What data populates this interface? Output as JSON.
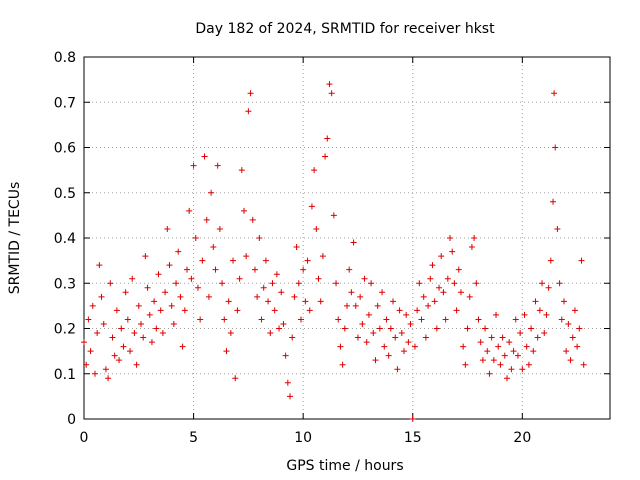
{
  "chart_data": {
    "type": "scatter",
    "title": "Day 182 of 2024, SRMTID for receiver hkst",
    "xlabel": "GPS time / hours",
    "ylabel": "SRMTID / TECUs",
    "xlim": [
      0,
      24
    ],
    "ylim": [
      0,
      0.8
    ],
    "x_ticks": [
      0,
      5,
      10,
      15,
      20
    ],
    "x_tick_labels": [
      "0",
      "5",
      "10",
      "15",
      "20"
    ],
    "y_ticks": [
      0,
      0.1,
      0.2,
      0.3,
      0.4,
      0.5,
      0.6,
      0.7,
      0.8
    ],
    "y_tick_labels": [
      "0",
      "0.1",
      "0.2",
      "0.3",
      "0.4",
      "0.5",
      "0.6",
      "0.7",
      "0.8"
    ],
    "grid": true,
    "marker": "plus",
    "color": "#dd0000",
    "series": [
      {
        "name": "SRMTID",
        "points": [
          [
            0.0,
            0.17
          ],
          [
            0.1,
            0.12
          ],
          [
            0.2,
            0.22
          ],
          [
            0.3,
            0.15
          ],
          [
            0.4,
            0.25
          ],
          [
            0.5,
            0.1
          ],
          [
            0.6,
            0.19
          ],
          [
            0.7,
            0.34
          ],
          [
            0.8,
            0.27
          ],
          [
            0.9,
            0.21
          ],
          [
            1.0,
            0.11
          ],
          [
            1.1,
            0.09
          ],
          [
            1.2,
            0.3
          ],
          [
            1.3,
            0.18
          ],
          [
            1.4,
            0.14
          ],
          [
            1.5,
            0.24
          ],
          [
            1.6,
            0.13
          ],
          [
            1.7,
            0.2
          ],
          [
            1.8,
            0.16
          ],
          [
            1.9,
            0.28
          ],
          [
            2.0,
            0.22
          ],
          [
            2.1,
            0.15
          ],
          [
            2.2,
            0.31
          ],
          [
            2.3,
            0.19
          ],
          [
            2.4,
            0.12
          ],
          [
            2.5,
            0.25
          ],
          [
            2.6,
            0.21
          ],
          [
            2.7,
            0.18
          ],
          [
            2.8,
            0.36
          ],
          [
            2.9,
            0.29
          ],
          [
            3.0,
            0.23
          ],
          [
            3.1,
            0.17
          ],
          [
            3.2,
            0.26
          ],
          [
            3.3,
            0.2
          ],
          [
            3.4,
            0.32
          ],
          [
            3.5,
            0.24
          ],
          [
            3.6,
            0.19
          ],
          [
            3.7,
            0.28
          ],
          [
            3.8,
            0.42
          ],
          [
            3.9,
            0.34
          ],
          [
            4.0,
            0.25
          ],
          [
            4.1,
            0.21
          ],
          [
            4.2,
            0.3
          ],
          [
            4.3,
            0.37
          ],
          [
            4.4,
            0.27
          ],
          [
            4.5,
            0.16
          ],
          [
            4.6,
            0.24
          ],
          [
            4.7,
            0.33
          ],
          [
            4.8,
            0.46
          ],
          [
            4.9,
            0.31
          ],
          [
            5.0,
            0.56
          ],
          [
            5.1,
            0.4
          ],
          [
            5.2,
            0.29
          ],
          [
            5.3,
            0.22
          ],
          [
            5.4,
            0.35
          ],
          [
            5.5,
            0.58
          ],
          [
            5.6,
            0.44
          ],
          [
            5.7,
            0.27
          ],
          [
            5.8,
            0.5
          ],
          [
            5.9,
            0.38
          ],
          [
            6.0,
            0.33
          ],
          [
            6.1,
            0.56
          ],
          [
            6.2,
            0.42
          ],
          [
            6.3,
            0.3
          ],
          [
            6.4,
            0.22
          ],
          [
            6.5,
            0.15
          ],
          [
            6.6,
            0.26
          ],
          [
            6.7,
            0.19
          ],
          [
            6.8,
            0.35
          ],
          [
            6.9,
            0.09
          ],
          [
            7.0,
            0.24
          ],
          [
            7.1,
            0.31
          ],
          [
            7.2,
            0.55
          ],
          [
            7.3,
            0.46
          ],
          [
            7.4,
            0.36
          ],
          [
            7.5,
            0.68
          ],
          [
            7.6,
            0.72
          ],
          [
            7.7,
            0.44
          ],
          [
            7.8,
            0.33
          ],
          [
            7.9,
            0.27
          ],
          [
            8.0,
            0.4
          ],
          [
            8.1,
            0.22
          ],
          [
            8.2,
            0.29
          ],
          [
            8.3,
            0.35
          ],
          [
            8.4,
            0.26
          ],
          [
            8.5,
            0.19
          ],
          [
            8.6,
            0.3
          ],
          [
            8.7,
            0.24
          ],
          [
            8.8,
            0.32
          ],
          [
            8.9,
            0.2
          ],
          [
            9.0,
            0.28
          ],
          [
            9.1,
            0.21
          ],
          [
            9.2,
            0.14
          ],
          [
            9.3,
            0.08
          ],
          [
            9.4,
            0.05
          ],
          [
            9.5,
            0.18
          ],
          [
            9.6,
            0.27
          ],
          [
            9.7,
            0.38
          ],
          [
            9.8,
            0.3
          ],
          [
            9.9,
            0.22
          ],
          [
            10.0,
            0.33
          ],
          [
            10.1,
            0.26
          ],
          [
            10.2,
            0.35
          ],
          [
            10.3,
            0.24
          ],
          [
            10.4,
            0.47
          ],
          [
            10.5,
            0.55
          ],
          [
            10.6,
            0.42
          ],
          [
            10.7,
            0.31
          ],
          [
            10.8,
            0.26
          ],
          [
            10.9,
            0.36
          ],
          [
            11.0,
            0.58
          ],
          [
            11.1,
            0.62
          ],
          [
            11.2,
            0.74
          ],
          [
            11.3,
            0.72
          ],
          [
            11.4,
            0.45
          ],
          [
            11.5,
            0.3
          ],
          [
            11.6,
            0.22
          ],
          [
            11.7,
            0.16
          ],
          [
            11.8,
            0.12
          ],
          [
            11.9,
            0.2
          ],
          [
            12.0,
            0.25
          ],
          [
            12.1,
            0.33
          ],
          [
            12.2,
            0.28
          ],
          [
            12.3,
            0.39
          ],
          [
            12.4,
            0.25
          ],
          [
            12.5,
            0.18
          ],
          [
            12.6,
            0.27
          ],
          [
            12.7,
            0.21
          ],
          [
            12.8,
            0.31
          ],
          [
            12.9,
            0.17
          ],
          [
            13.0,
            0.23
          ],
          [
            13.1,
            0.3
          ],
          [
            13.2,
            0.19
          ],
          [
            13.3,
            0.13
          ],
          [
            13.4,
            0.25
          ],
          [
            13.5,
            0.2
          ],
          [
            13.6,
            0.28
          ],
          [
            13.7,
            0.16
          ],
          [
            13.8,
            0.22
          ],
          [
            13.9,
            0.14
          ],
          [
            14.0,
            0.2
          ],
          [
            14.1,
            0.26
          ],
          [
            14.2,
            0.18
          ],
          [
            14.3,
            0.11
          ],
          [
            14.4,
            0.24
          ],
          [
            14.5,
            0.19
          ],
          [
            14.6,
            0.15
          ],
          [
            14.7,
            0.23
          ],
          [
            14.8,
            0.17
          ],
          [
            14.9,
            0.21
          ],
          [
            15.0,
            0.0
          ],
          [
            15.1,
            0.16
          ],
          [
            15.2,
            0.24
          ],
          [
            15.3,
            0.3
          ],
          [
            15.4,
            0.22
          ],
          [
            15.5,
            0.27
          ],
          [
            15.6,
            0.18
          ],
          [
            15.7,
            0.25
          ],
          [
            15.8,
            0.31
          ],
          [
            15.9,
            0.34
          ],
          [
            16.0,
            0.26
          ],
          [
            16.1,
            0.2
          ],
          [
            16.2,
            0.29
          ],
          [
            16.3,
            0.36
          ],
          [
            16.4,
            0.28
          ],
          [
            16.5,
            0.22
          ],
          [
            16.6,
            0.31
          ],
          [
            16.7,
            0.4
          ],
          [
            16.8,
            0.37
          ],
          [
            16.9,
            0.3
          ],
          [
            17.0,
            0.24
          ],
          [
            17.1,
            0.33
          ],
          [
            17.2,
            0.28
          ],
          [
            17.3,
            0.16
          ],
          [
            17.4,
            0.12
          ],
          [
            17.5,
            0.2
          ],
          [
            17.6,
            0.27
          ],
          [
            17.7,
            0.38
          ],
          [
            17.8,
            0.4
          ],
          [
            17.9,
            0.3
          ],
          [
            18.0,
            0.22
          ],
          [
            18.1,
            0.17
          ],
          [
            18.2,
            0.13
          ],
          [
            18.3,
            0.2
          ],
          [
            18.4,
            0.15
          ],
          [
            18.5,
            0.1
          ],
          [
            18.6,
            0.18
          ],
          [
            18.7,
            0.13
          ],
          [
            18.8,
            0.23
          ],
          [
            18.9,
            0.16
          ],
          [
            19.0,
            0.12
          ],
          [
            19.1,
            0.18
          ],
          [
            19.2,
            0.14
          ],
          [
            19.3,
            0.09
          ],
          [
            19.4,
            0.17
          ],
          [
            19.5,
            0.11
          ],
          [
            19.6,
            0.15
          ],
          [
            19.7,
            0.22
          ],
          [
            19.8,
            0.14
          ],
          [
            19.9,
            0.19
          ],
          [
            20.0,
            0.11
          ],
          [
            20.1,
            0.23
          ],
          [
            20.2,
            0.16
          ],
          [
            20.3,
            0.12
          ],
          [
            20.4,
            0.2
          ],
          [
            20.5,
            0.15
          ],
          [
            20.6,
            0.26
          ],
          [
            20.7,
            0.18
          ],
          [
            20.8,
            0.24
          ],
          [
            20.9,
            0.3
          ],
          [
            21.0,
            0.19
          ],
          [
            21.1,
            0.23
          ],
          [
            21.2,
            0.29
          ],
          [
            21.3,
            0.35
          ],
          [
            21.4,
            0.48
          ],
          [
            21.5,
            0.6
          ],
          [
            21.45,
            0.72
          ],
          [
            21.6,
            0.42
          ],
          [
            21.7,
            0.3
          ],
          [
            21.8,
            0.22
          ],
          [
            21.9,
            0.26
          ],
          [
            22.0,
            0.15
          ],
          [
            22.1,
            0.21
          ],
          [
            22.2,
            0.13
          ],
          [
            22.3,
            0.18
          ],
          [
            22.4,
            0.24
          ],
          [
            22.5,
            0.16
          ],
          [
            22.6,
            0.2
          ],
          [
            22.7,
            0.35
          ],
          [
            22.8,
            0.12
          ]
        ]
      }
    ]
  }
}
